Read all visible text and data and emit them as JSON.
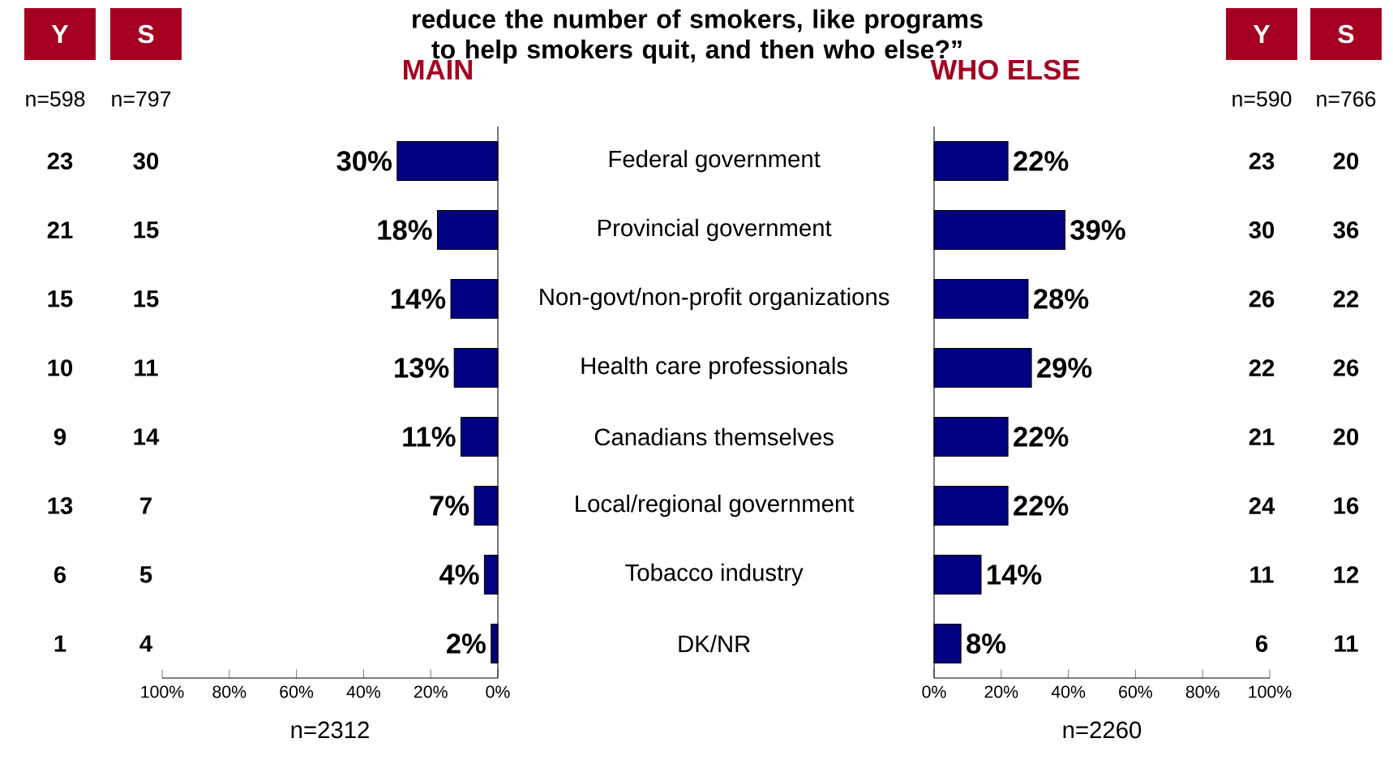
{
  "chart_data": [
    {
      "type": "bar",
      "orientation": "horizontal",
      "title": "MAIN",
      "xlabel": "n=2312",
      "color": "#000080",
      "categories": [
        "Federal government",
        "Provincial government",
        "Non-govt/non-profit organizations",
        "Health care professionals",
        "Canadians themselves",
        "Local/regional government",
        "Tobacco industry",
        "DK/NR"
      ],
      "values": [
        30,
        18,
        14,
        13,
        11,
        7,
        4,
        2
      ],
      "value_labels": [
        "30%",
        "18%",
        "14%",
        "13%",
        "11%",
        "7%",
        "4%",
        "2%"
      ],
      "xlim": [
        100,
        0
      ],
      "xticks": [
        {
          "value": 100,
          "label": "100%"
        },
        {
          "value": 80,
          "label": "80%"
        },
        {
          "value": 60,
          "label": "60%"
        },
        {
          "value": 40,
          "label": "40%"
        },
        {
          "value": 20,
          "label": "20%"
        },
        {
          "value": 0,
          "label": "0%"
        }
      ],
      "annotations": [
        "Y",
        "S",
        "n=598",
        "n=797",
        "23",
        "30",
        "21",
        "15",
        "15",
        "15",
        "10",
        "11",
        "9",
        "14",
        "13",
        "7",
        "6",
        "5",
        "1",
        "4",
        "reduce the number of smokers, like programs to help smokers quit, and then who else?”"
      ]
    },
    {
      "type": "bar",
      "orientation": "horizontal",
      "title": "WHO ELSE",
      "xlabel": "n=2260",
      "color": "#000080",
      "categories": [
        null,
        null,
        null,
        null,
        null,
        null,
        null,
        null
      ],
      "values": [
        22,
        39,
        28,
        29,
        22,
        22,
        14,
        8
      ],
      "value_labels": [
        "22%",
        "39%",
        "28%",
        "29%",
        "22%",
        "22%",
        "14%",
        "8%"
      ],
      "xlim": [
        0,
        100
      ],
      "xticks": [
        {
          "value": 0,
          "label": "0%"
        },
        {
          "value": 20,
          "label": "20%"
        },
        {
          "value": 40,
          "label": "40%"
        },
        {
          "value": 60,
          "label": "60%"
        },
        {
          "value": 80,
          "label": "80%"
        },
        {
          "value": 100,
          "label": "100%"
        }
      ],
      "annotations": [
        "Y",
        "S",
        "n=590",
        "n=766",
        "23",
        "20",
        "30",
        "36",
        "26",
        "22",
        "22",
        "26",
        "21",
        "20",
        "24",
        "16",
        "11",
        "12",
        "6",
        "11"
      ]
    }
  ]
}
